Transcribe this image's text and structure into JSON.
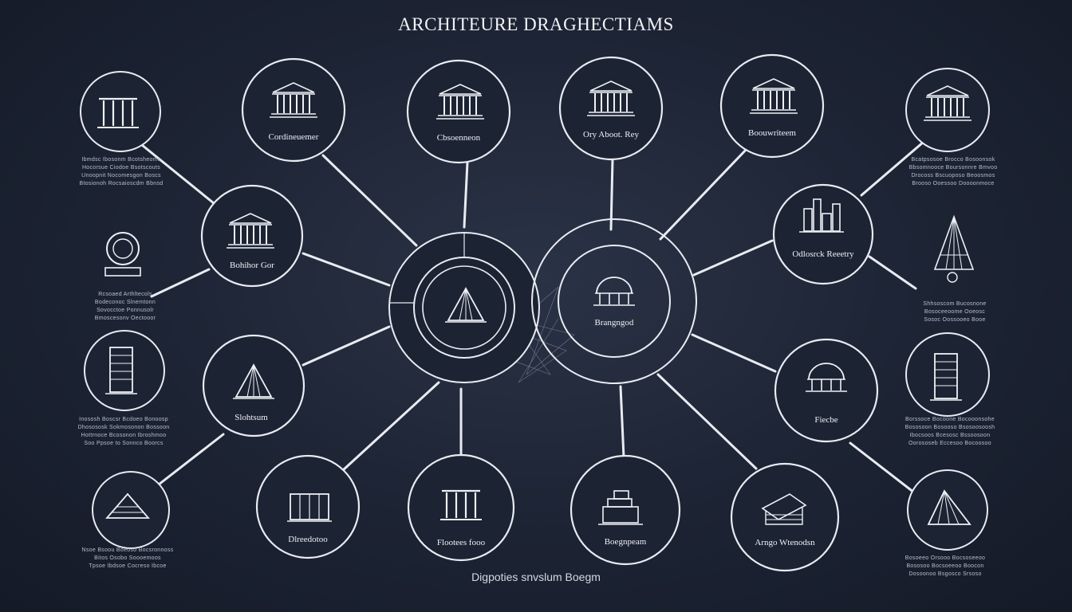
{
  "title": "ARCHITEURE DRAGHECTIAMS",
  "caption": "Digpoties snvslum Boegm",
  "colors": {
    "background": "#1c2333",
    "line": "#e8ebf1",
    "text": "#eef1f6"
  },
  "hubs": [
    {
      "id": "hub-left",
      "icon": "pyramid-structure-icon",
      "label": ""
    },
    {
      "id": "hub-right",
      "icon": "dome-pavilion-icon",
      "label": "Brangngod"
    }
  ],
  "nodes": [
    {
      "id": "top-1",
      "icon": "classical-temple-icon",
      "label": "Cordineuemer"
    },
    {
      "id": "top-2",
      "icon": "classical-temple-icon",
      "label": "Cbsoenneon"
    },
    {
      "id": "top-3",
      "icon": "classical-temple-icon",
      "label": "Ory Aboot. Rey"
    },
    {
      "id": "top-4",
      "icon": "classical-temple-icon",
      "label": "Boouwriteem"
    },
    {
      "id": "mid-left-1",
      "icon": "classical-temple-icon",
      "label": "Bohihor Gor"
    },
    {
      "id": "mid-left-2",
      "icon": "tent-structure-icon",
      "label": "Slohtsum"
    },
    {
      "id": "mid-right-1",
      "icon": "skyline-icon",
      "label": "Odlosrck Reeetry"
    },
    {
      "id": "mid-right-2",
      "icon": "observatory-dome-icon",
      "label": "Fiecbe"
    },
    {
      "id": "bottom-1",
      "icon": "building-block-icon",
      "label": "Dlreedotoo"
    },
    {
      "id": "bottom-2",
      "icon": "colonnade-icon",
      "label": "Flootees fooo"
    },
    {
      "id": "bottom-3",
      "icon": "stacked-blocks-icon",
      "label": "Boegnpeam"
    },
    {
      "id": "bottom-4",
      "icon": "roof-structure-icon",
      "label": "Arngo Wtenodsn"
    }
  ],
  "outer_icons": [
    {
      "id": "outer-left-1",
      "icon": "column-facade-icon"
    },
    {
      "id": "outer-left-2",
      "icon": "ring-monument-icon"
    },
    {
      "id": "outer-left-3",
      "icon": "tower-icon"
    },
    {
      "id": "outer-left-4",
      "icon": "pyramid-icon"
    },
    {
      "id": "outer-right-1",
      "icon": "temple-icon"
    },
    {
      "id": "outer-right-2",
      "icon": "spire-tower-icon"
    },
    {
      "id": "outer-right-3",
      "icon": "skyscraper-icon"
    },
    {
      "id": "outer-right-4",
      "icon": "fan-pyramid-icon"
    }
  ],
  "notes": [
    {
      "id": "note-left-1",
      "lines": [
        "Ibmdsc Ibosonm Bcotsheoms",
        "Hocorsue Ciodoe Bsotscouts",
        "Unoopnit Nocomesgon Boscs",
        "Btosionoh Rocsaioscdm Bbnsd"
      ]
    },
    {
      "id": "note-left-2",
      "lines": [
        "Rcsoaed Arthltecols",
        "Bodeconoc Slnemtonn",
        "Sovocctoe Ponnusolr",
        "Bmoscesonv Oectooor"
      ]
    },
    {
      "id": "note-left-3",
      "lines": [
        "Inososh Boscsr Bcdoeo Bonoosp",
        "Dhosososk Sokmosonon Bossoon",
        "Hottrnoce Bcosonon Ibroshmoo",
        "Soo Ppsoe to Sonnco Boorcs"
      ]
    },
    {
      "id": "note-left-4",
      "lines": [
        "Nsoe Bsoou Boeoso Bocsronnoss",
        "Bitos Osobo Soooemoos",
        "Tpsoe Ibdsoe Cocreso Ibcoe"
      ]
    },
    {
      "id": "note-right-1",
      "lines": [
        "Bcatpsosoe Brocco Bosoonsok",
        "Bbsomnooce Boursonnre Bmvoo",
        "Drocoss Bscuoposo Beoosmos",
        "Brooso Ooessoo Doooonmoce"
      ]
    },
    {
      "id": "note-right-2",
      "lines": [
        "Shhsoscom Bucosnone",
        "Bosoceeoome Ooeosc",
        "Sosoc Oossooeo Booe"
      ]
    },
    {
      "id": "note-right-3",
      "lines": [
        "Borssoce Bocoone Bocooonsohe",
        "Bososoon Bosooso Bsosoosoosh",
        "Ibocsoos Bcesosc Bssoosoon",
        "Oorososeb Eccesoo Bocoosoo"
      ]
    },
    {
      "id": "note-right-4",
      "lines": [
        "Bosoeeo Orsooo Bocsoseeoo",
        "Bososoo Bocsoeeoo Boocon",
        "Dosoonoo Bsgosco Srsoso"
      ]
    }
  ]
}
